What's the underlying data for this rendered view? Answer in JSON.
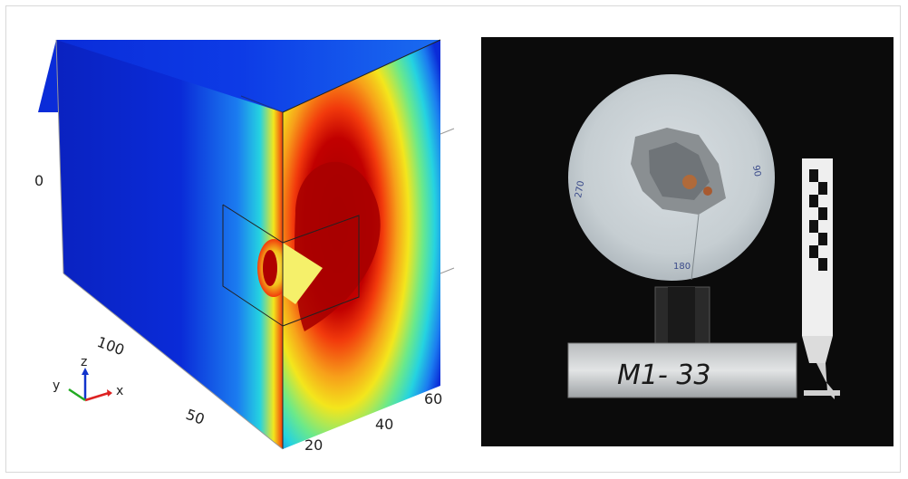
{
  "left_figure": {
    "axis_label_z0": "0",
    "y_ticks": [
      "100",
      "50"
    ],
    "x_ticks": [
      "20",
      "40",
      "60"
    ],
    "triad": {
      "x": "x",
      "y": "y",
      "z": "z"
    },
    "colors": {
      "cold": "#0a2bd8",
      "cool": "#1b7cf0",
      "mid": "#25d3e0",
      "warm": "#f3e61c",
      "hot": "#f23a0c",
      "max": "#9c0000"
    }
  },
  "right_photo": {
    "label_text": "M1- 33",
    "disk_marks": [
      "90",
      "180",
      "270"
    ]
  }
}
